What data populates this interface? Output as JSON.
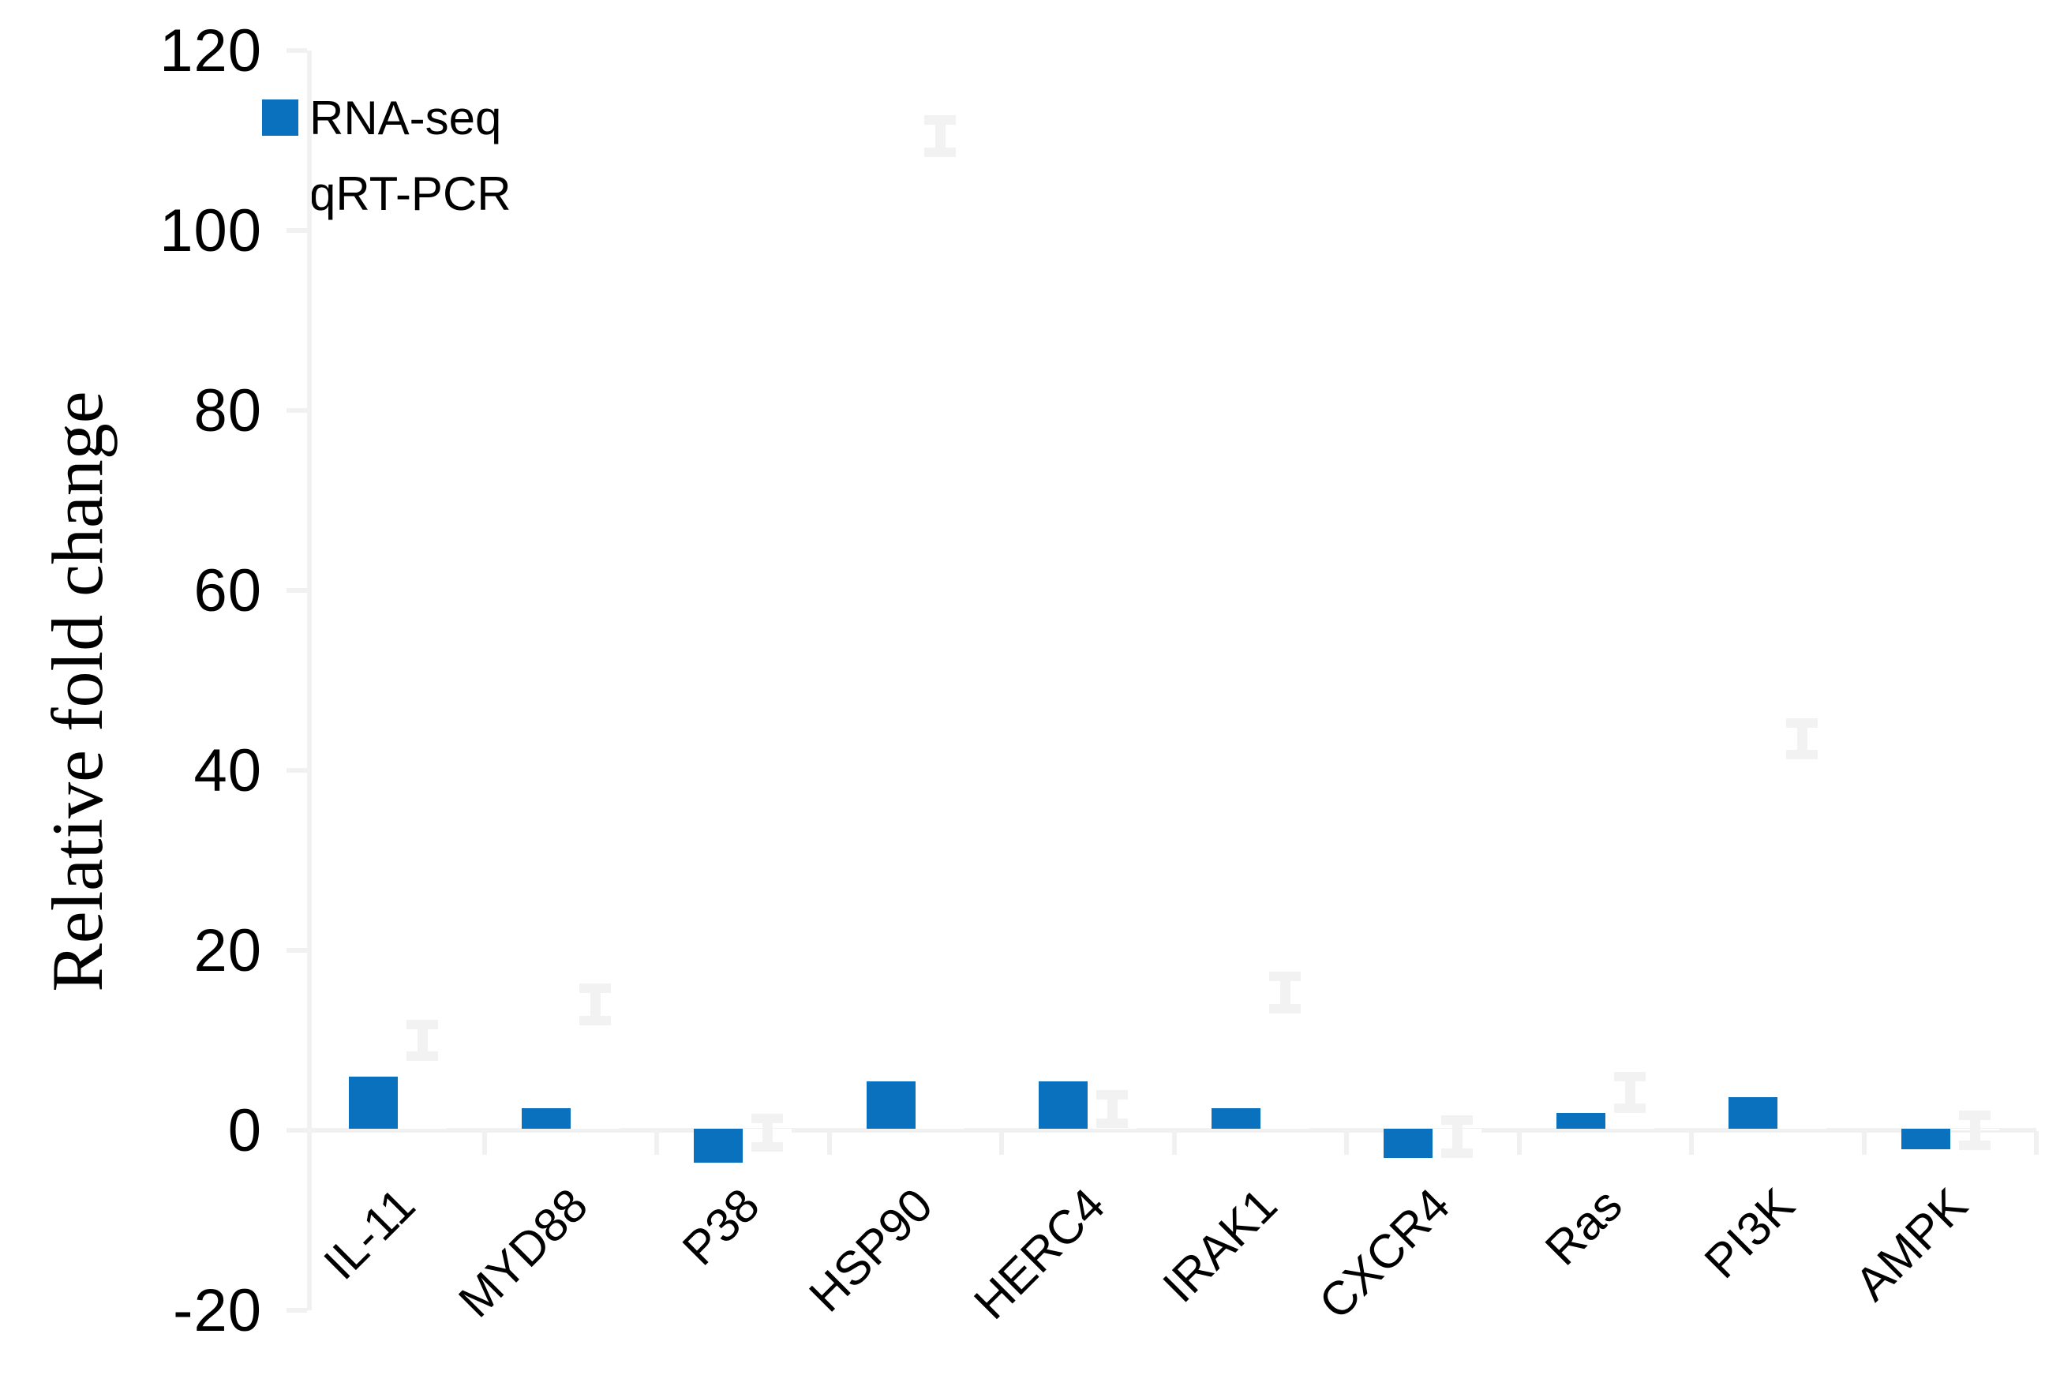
{
  "chart_data": {
    "type": "bar",
    "title": "",
    "ylabel": "Relative fold change",
    "xlabel": "",
    "ylim": [
      -20,
      120
    ],
    "yticks": [
      120,
      100,
      80,
      60,
      40,
      20,
      0,
      -20
    ],
    "grid": false,
    "legend_position": "top-left-inside",
    "category_label_rotation_deg": 45,
    "categories": [
      "IL-11",
      "MYD88",
      "P38",
      "HSP90",
      "HERC4",
      "IRAK1",
      "CXCR4",
      "Ras",
      "PI3K",
      "AMPK"
    ],
    "series": [
      {
        "name": "RNA-seq",
        "color": "#0971bd",
        "values": [
          6.0,
          2.5,
          -3.6,
          5.4,
          5.4,
          2.5,
          -3.1,
          1.9,
          3.7,
          -2.1
        ]
      },
      {
        "name": "qRT-PCR",
        "color": "#ffffff",
        "values": [
          10.0,
          14.0,
          -0.3,
          110.5,
          2.4,
          15.3,
          -0.7,
          4.2,
          43.5,
          0.0
        ],
        "error_bars": [
          2.3,
          2.3,
          2.1,
          2.3,
          2.1,
          2.3,
          2.4,
          2.3,
          2.3,
          2.2
        ],
        "error_color": "#f2f2f3"
      }
    ]
  },
  "legend": {
    "items": [
      {
        "label": "RNA-seq",
        "swatch": "#0971bd"
      },
      {
        "label": "qRT-PCR",
        "swatch": "#ffffff"
      }
    ]
  },
  "colors": {
    "bar_blue": "#0971bd",
    "axis_gray": "#f1f1f2",
    "error_gray": "#f2f2f3",
    "text": "#000000",
    "background": "#ffffff"
  }
}
